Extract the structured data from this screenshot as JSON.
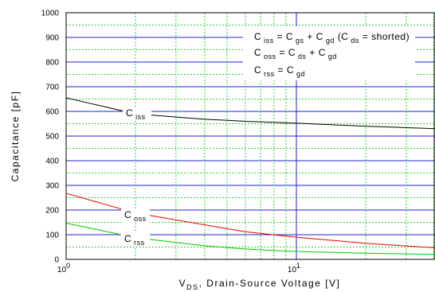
{
  "chart_data": {
    "type": "line",
    "xlabel": {
      "main": "V",
      "sub": "DS",
      "rest": ", Drain-Source Voltage [V]"
    },
    "ylabel": "Capacitance [pF]",
    "x_scale": "log",
    "xlim": [
      1,
      40
    ],
    "ylim": [
      0,
      1000
    ],
    "x_ticks": [
      {
        "value": 1,
        "base": "10",
        "exp": "0"
      },
      {
        "value": 10,
        "base": "10",
        "exp": "1"
      }
    ],
    "y_ticks": [
      "0",
      "100",
      "200",
      "300",
      "400",
      "500",
      "600",
      "700",
      "800",
      "900",
      "1000"
    ],
    "grid": true,
    "series": [
      {
        "name": "Ciss",
        "color": "#000000",
        "x": [
          1,
          2,
          4,
          6,
          10,
          20,
          40
        ],
        "y": [
          655,
          590,
          568,
          560,
          552,
          540,
          530
        ]
      },
      {
        "name": "Coss",
        "color": "#ee0000",
        "x": [
          1,
          2,
          4,
          6,
          10,
          20,
          40
        ],
        "y": [
          268,
          188,
          140,
          112,
          90,
          65,
          47
        ]
      },
      {
        "name": "Crss",
        "color": "#00cc00",
        "x": [
          1,
          2,
          4,
          6,
          10,
          20,
          40
        ],
        "y": [
          147,
          88,
          55,
          42,
          32,
          25,
          20
        ]
      }
    ],
    "series_labels": [
      {
        "series": "Ciss",
        "main": "C",
        "sub": "iss"
      },
      {
        "series": "Coss",
        "main": "C",
        "sub": "oss"
      },
      {
        "series": "Crss",
        "main": "C",
        "sub": "rss"
      }
    ],
    "legend": {
      "placement": "top-right",
      "lines": [
        [
          {
            "t": "C"
          },
          {
            "s": "iss"
          },
          {
            "t": " = C"
          },
          {
            "s": "gs"
          },
          {
            "t": " + C"
          },
          {
            "s": "gd"
          },
          {
            "t": " (C"
          },
          {
            "s": "ds"
          },
          {
            "t": " = shorted)"
          }
        ],
        [
          {
            "t": "C"
          },
          {
            "s": "oss"
          },
          {
            "t": " = C"
          },
          {
            "s": "ds"
          },
          {
            "t": " + C"
          },
          {
            "s": "gd"
          }
        ],
        [
          {
            "t": "C"
          },
          {
            "s": "rss"
          },
          {
            "t": " = C"
          },
          {
            "s": "gd"
          }
        ]
      ]
    },
    "colors": {
      "major_grid": "#2020d0",
      "minor_grid": "#33cc33",
      "frame": "#000000"
    }
  }
}
